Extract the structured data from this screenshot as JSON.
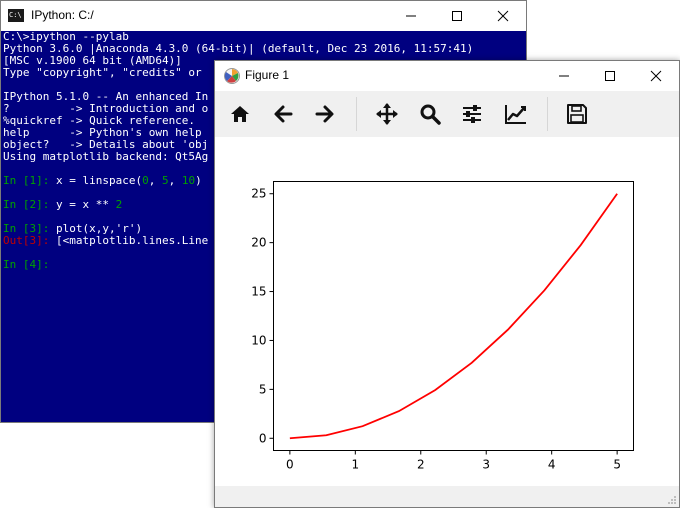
{
  "console": {
    "title": "IPython: C:/",
    "icon": "console-app-icon",
    "icon_text": "C:\\",
    "lines": [
      "C:\\>ipython --pylab",
      "Python 3.6.0 |Anaconda 4.3.0 (64-bit)| (default, Dec 23 2016, 11:57:41)",
      "[MSC v.1900 64 bit (AMD64)]",
      "Type \"copyright\", \"credits\" or",
      "",
      "IPython 5.1.0 -- An enhanced In",
      "?         -> Introduction and o",
      "%quickref -> Quick reference.",
      "help      -> Python's own help",
      "object?   -> Details about 'obj",
      "Using matplotlib backend: Qt5Ag"
    ],
    "in1_prompt": "In [1]:",
    "in1_code_a": " x = linspace(",
    "in1_num_a": "0",
    "in1_code_b": ", ",
    "in1_num_b": "5",
    "in1_code_c": ", ",
    "in1_num_c": "10",
    "in1_code_d": ")",
    "in2_prompt": "In [2]:",
    "in2_code": " y = x ** ",
    "in2_num": "2",
    "in3_prompt": "In [3]:",
    "in3_code": " plot(x,y,'r')",
    "out3_prompt": "Out[3]:",
    "out3_text": " [<matplotlib.lines.Line",
    "in4_prompt": "In [4]:"
  },
  "figure": {
    "title": "Figure 1",
    "icon": "matplotlib-icon",
    "toolbar": [
      "home-icon",
      "back-arrow-icon",
      "forward-arrow-icon",
      "pan-icon",
      "zoom-icon",
      "configure-subplots-icon",
      "edit-axes-icon",
      "save-icon"
    ]
  },
  "colors": {
    "console_bg": "#000080",
    "prompt_in": "#00a000",
    "prompt_out": "#c00000",
    "line": "#ff0000"
  },
  "chart_data": {
    "type": "line",
    "title": "",
    "xlabel": "",
    "ylabel": "",
    "xlim": [
      -0.25,
      5.25
    ],
    "ylim": [
      -1.25,
      26.25
    ],
    "xticks": [
      0,
      1,
      2,
      3,
      4,
      5
    ],
    "yticks": [
      0,
      5,
      10,
      15,
      20,
      25
    ],
    "grid": false,
    "series": [
      {
        "color": "#ff0000",
        "x": [
          0,
          0.556,
          1.111,
          1.667,
          2.222,
          2.778,
          3.333,
          3.889,
          4.444,
          5.0
        ],
        "y": [
          0,
          0.309,
          1.235,
          2.778,
          4.938,
          7.716,
          11.111,
          15.123,
          19.753,
          25.0
        ]
      }
    ]
  }
}
